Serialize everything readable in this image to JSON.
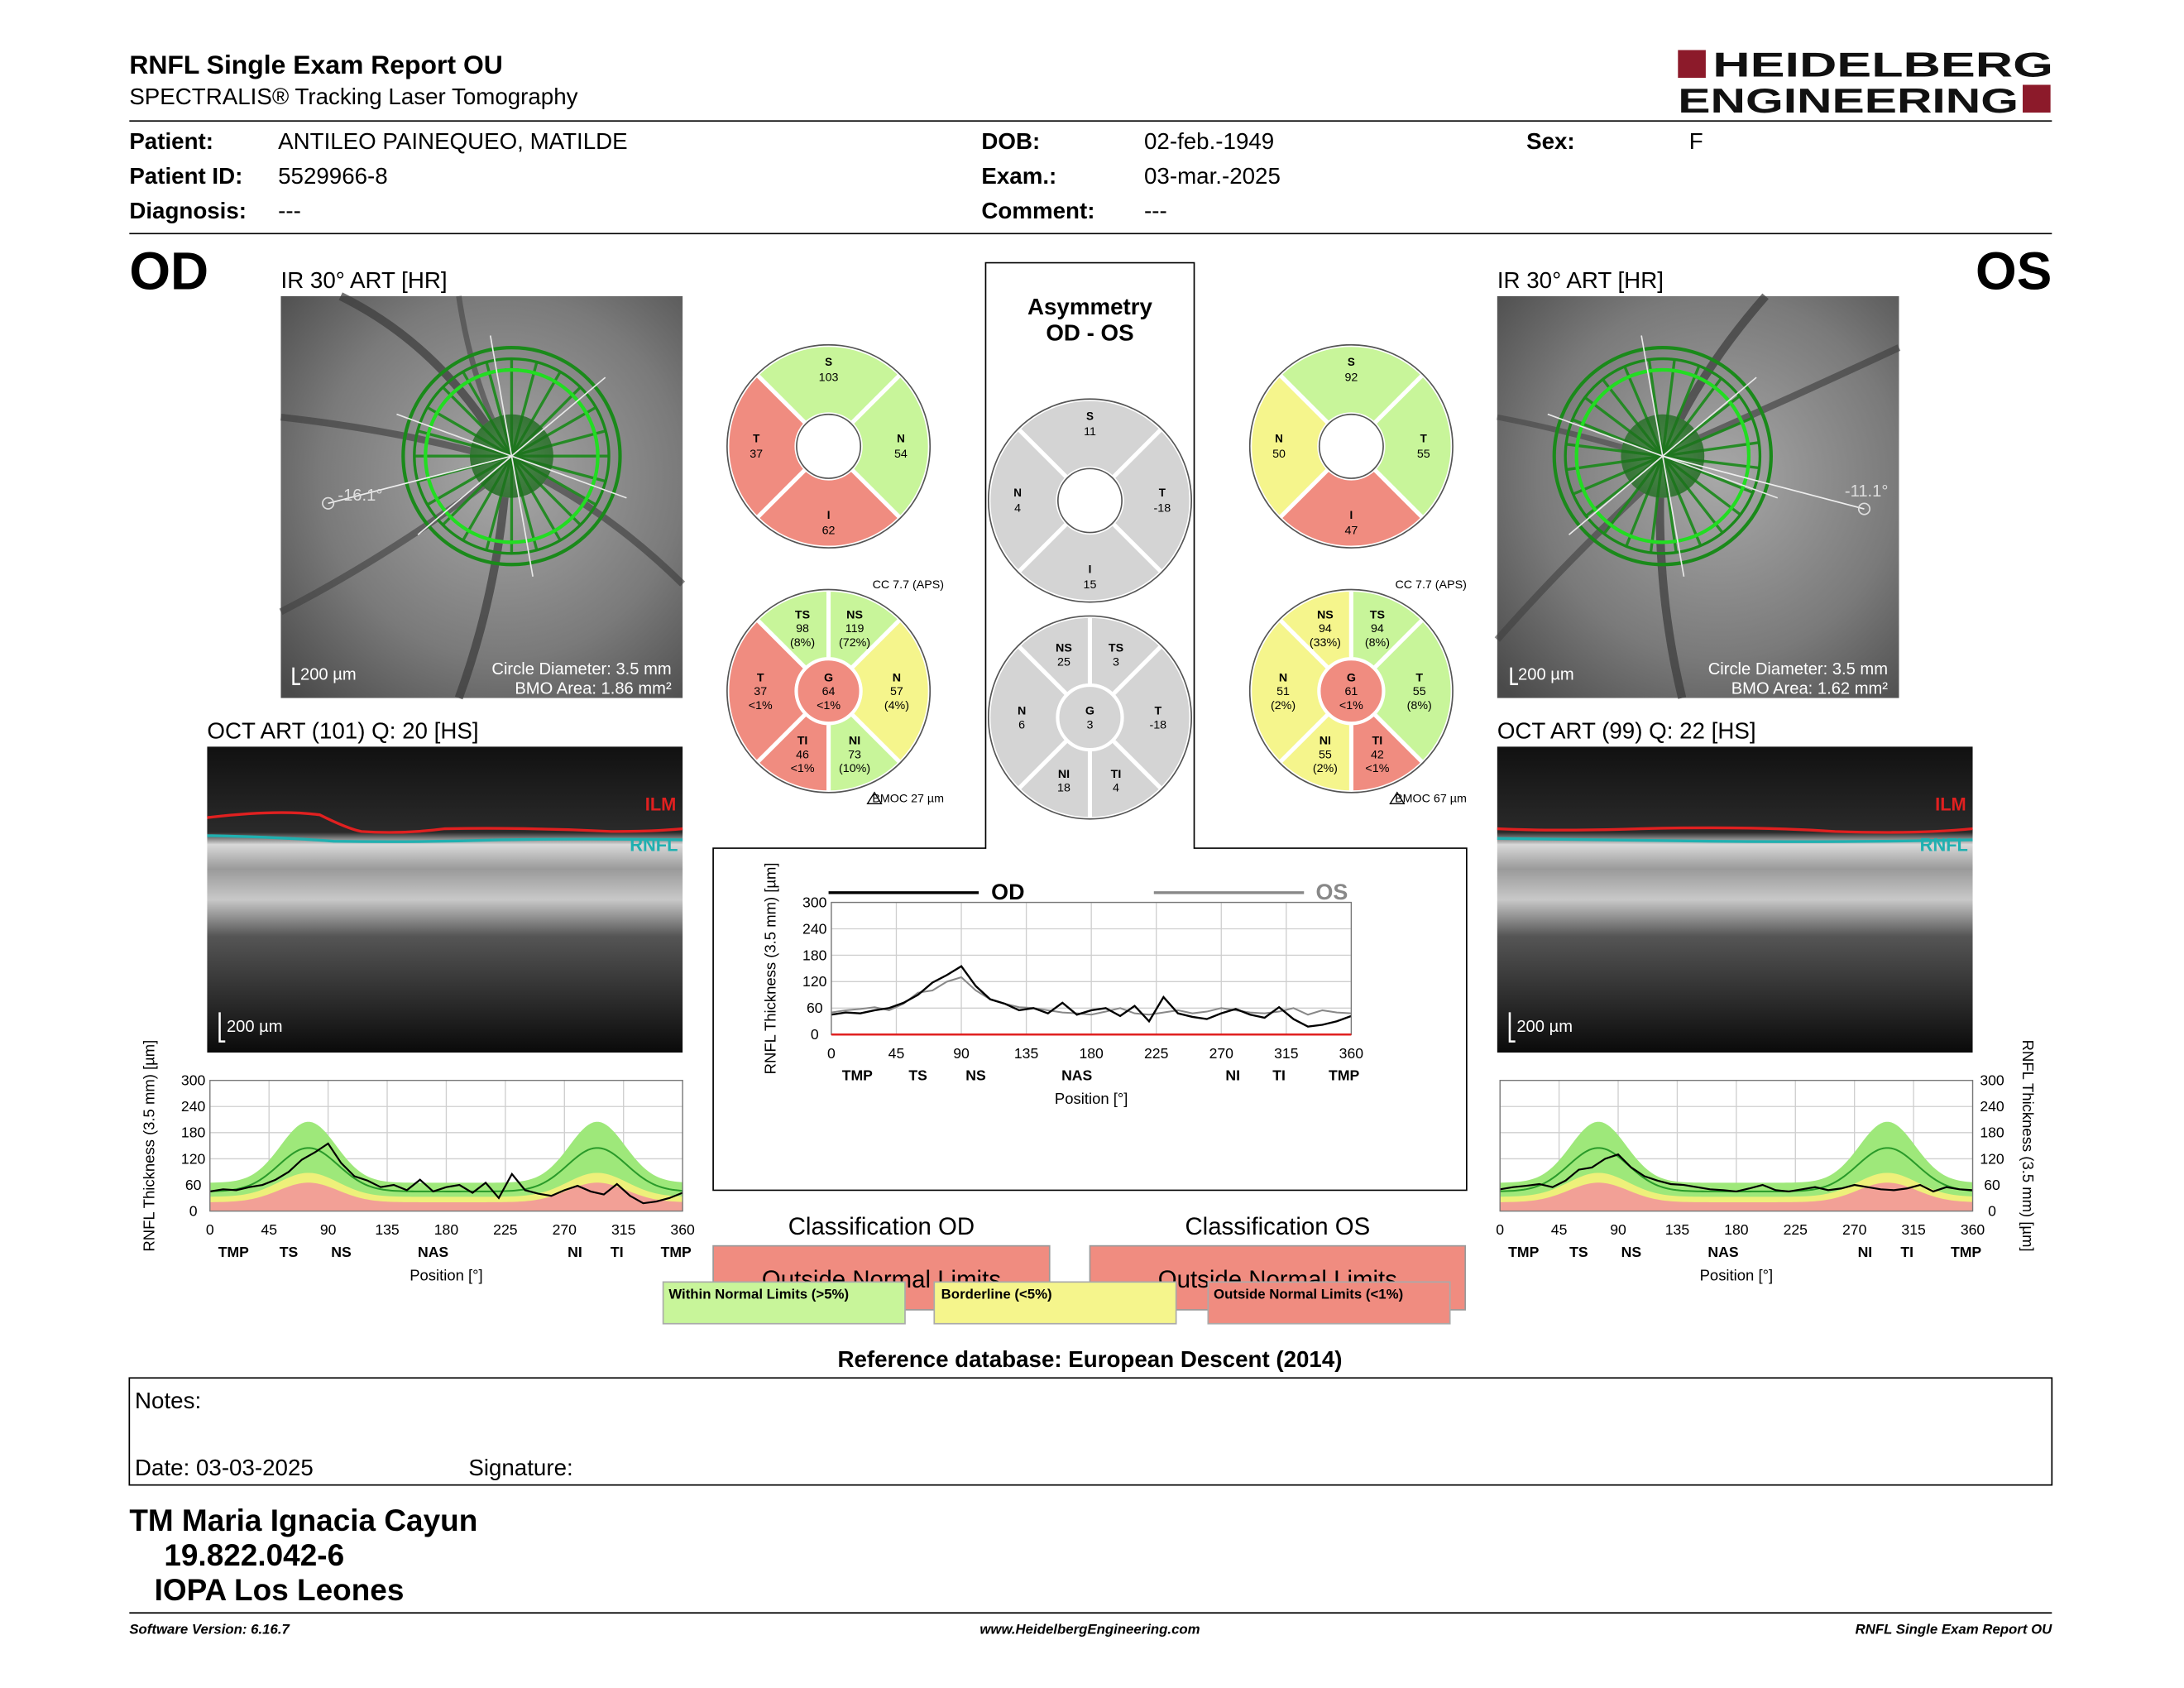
{
  "header": {
    "title": "RNFL Single Exam Report OU",
    "subtitle": "SPECTRALIS® Tracking Laser Tomography",
    "brand_line1": "HEIDELBERG",
    "brand_line2": "ENGINEERING",
    "brand_color": "#8c1a2a"
  },
  "patient": {
    "patient_label": "Patient:",
    "patient_value": "ANTILEO PAINEQUEO, MATILDE",
    "id_label": "Patient ID:",
    "id_value": "5529966-8",
    "diagnosis_label": "Diagnosis:",
    "diagnosis_value": "---",
    "dob_label": "DOB:",
    "dob_value": "02-feb.-1949",
    "exam_label": "Exam.:",
    "exam_value": "03-mar.-2025",
    "comment_label": "Comment:",
    "comment_value": "---",
    "sex_label": "Sex:",
    "sex_value": "F"
  },
  "od": {
    "eye": "OD",
    "ir_title": "IR 30° ART [HR]",
    "circle_diameter": "Circle Diameter: 3.5 mm",
    "bmo_area": "BMO Area: 1.86 mm²",
    "scale": "200 µm",
    "angle": "-16.1°",
    "oct_title": "OCT ART (101) Q: 20 [HS]",
    "oct_scale": "200 µm",
    "ilm": "ILM",
    "rnfl": "RNFL",
    "sectors4": {
      "S": "103",
      "T": "37",
      "N": "54",
      "I": "62"
    },
    "cc": "CC 7.7 (APS)",
    "bmoc": "BMOC 27 µm",
    "sectors6": {
      "TS": [
        "TS",
        "98",
        "(8%)"
      ],
      "NS": [
        "NS",
        "119",
        "(72%)"
      ],
      "T": [
        "T",
        "37",
        "<1%"
      ],
      "G": [
        "G",
        "64",
        "<1%"
      ],
      "N": [
        "N",
        "57",
        "(4%)"
      ],
      "TI": [
        "TI",
        "46",
        "<1%"
      ],
      "NI": [
        "NI",
        "73",
        "(10%)"
      ]
    }
  },
  "os": {
    "eye": "OS",
    "ir_title": "IR 30° ART [HR]",
    "circle_diameter": "Circle Diameter: 3.5 mm",
    "bmo_area": "BMO Area: 1.62 mm²",
    "scale": "200 µm",
    "angle": "-11.1°",
    "oct_title": "OCT ART (99) Q: 22 [HS]",
    "oct_scale": "200 µm",
    "ilm": "ILM",
    "rnfl": "RNFL",
    "sectors4": {
      "S": "92",
      "N": "50",
      "T": "55",
      "I": "47"
    },
    "cc": "CC 7.7 (APS)",
    "bmoc": "BMOC 67 µm",
    "sectors6": {
      "NS": [
        "NS",
        "94",
        "(33%)"
      ],
      "TS": [
        "TS",
        "94",
        "(8%)"
      ],
      "N": [
        "N",
        "51",
        "(2%)"
      ],
      "G": [
        "G",
        "61",
        "<1%"
      ],
      "T": [
        "T",
        "55",
        "(8%)"
      ],
      "NI": [
        "NI",
        "55",
        "(2%)"
      ],
      "TI": [
        "TI",
        "42",
        "<1%"
      ]
    }
  },
  "asym": {
    "title1": "Asymmetry",
    "title2": "OD - OS",
    "sectors4": {
      "S": "11",
      "N": "4",
      "T": "-18",
      "I": "15"
    },
    "sectors6": {
      "NS": [
        "NS",
        "25"
      ],
      "TS": [
        "TS",
        "3"
      ],
      "N": [
        "N",
        "6"
      ],
      "G": [
        "G",
        "3"
      ],
      "T": [
        "T",
        "-18"
      ],
      "NI": [
        "NI",
        "18"
      ],
      "TI": [
        "TI",
        "4"
      ]
    }
  },
  "profile": {
    "ylabel": "RNFL Thickness (3.5 mm) [µm]",
    "xlabel": "Position [°]",
    "yticks": [
      "0",
      "60",
      "120",
      "180",
      "240",
      "300"
    ],
    "xticks": [
      "0",
      "45",
      "90",
      "135",
      "180",
      "225",
      "270",
      "315",
      "360"
    ],
    "sector_labels": [
      "TMP",
      "TS",
      "NS",
      "NAS",
      "NI",
      "TI",
      "TMP"
    ]
  },
  "asym_chart": {
    "legend_od": "OD",
    "legend_os": "OS"
  },
  "classification": {
    "od_title": "Classification OD",
    "os_title": "Classification OS",
    "od_value": "Outside Normal Limits",
    "os_value": "Outside Normal Limits",
    "legend_within": "Within Normal Limits (>5%)",
    "legend_borderline": "Borderline (<5%)",
    "legend_outside": "Outside Normal Limits (<1%)",
    "reference": "Reference database: European Descent (2014)"
  },
  "colors": {
    "green": "#c8f59a",
    "yellow": "#f5f58c",
    "red": "#f08c80",
    "gray": "#d4d4d4",
    "band_green": "#9ee87a",
    "band_yellow": "#eef07a",
    "band_red": "#f2a096"
  },
  "notes": {
    "label": "Notes:",
    "date": "Date: 03-03-2025",
    "signature": "Signature:"
  },
  "operator": {
    "name": "TM Maria Ignacia Cayun",
    "rut": "19.822.042-6",
    "institution": "IOPA Los Leones"
  },
  "footer": {
    "software": "Software Version: 6.16.7",
    "website": "www.HeidelbergEngineering.com",
    "report": "RNFL Single Exam Report OU"
  },
  "chart_data": [
    {
      "type": "line",
      "title": "",
      "xlabel": "Position [°]",
      "ylabel": "RNFL Thickness (3.5 mm) [µm]",
      "xlim": [
        0,
        360
      ],
      "ylim": [
        0,
        300
      ],
      "x": [
        0,
        10,
        20,
        30,
        40,
        50,
        60,
        70,
        80,
        90,
        100,
        110,
        120,
        130,
        140,
        150,
        160,
        170,
        180,
        190,
        200,
        210,
        220,
        230,
        240,
        250,
        260,
        270,
        280,
        290,
        300,
        310,
        320,
        330,
        340,
        350,
        360
      ],
      "series": [
        {
          "name": "OD",
          "values": [
            45,
            50,
            48,
            55,
            60,
            72,
            90,
            118,
            135,
            155,
            110,
            80,
            70,
            55,
            60,
            48,
            72,
            45,
            55,
            60,
            42,
            65,
            30,
            85,
            48,
            40,
            35,
            48,
            58,
            45,
            38,
            62,
            35,
            18,
            22,
            30,
            42
          ]
        },
        {
          "name": "OS",
          "values": [
            50,
            55,
            58,
            62,
            55,
            70,
            95,
            100,
            120,
            130,
            100,
            80,
            70,
            62,
            60,
            55,
            50,
            48,
            45,
            52,
            60,
            48,
            45,
            50,
            55,
            48,
            52,
            60,
            55,
            50,
            48,
            52,
            60,
            45,
            55,
            50,
            48
          ]
        }
      ],
      "grid": true,
      "legend": "top"
    },
    {
      "type": "line",
      "title": "",
      "xlabel": "Position [°]",
      "ylabel": "RNFL Thickness (3.5 mm) [µm]",
      "xlim": [
        0,
        360
      ],
      "ylim": [
        0,
        300
      ],
      "x": [
        0,
        10,
        20,
        30,
        40,
        50,
        60,
        70,
        80,
        90,
        100,
        110,
        120,
        130,
        140,
        150,
        160,
        170,
        180,
        190,
        200,
        210,
        220,
        230,
        240,
        250,
        260,
        270,
        280,
        290,
        300,
        310,
        320,
        330,
        340,
        350,
        360
      ],
      "series": [
        {
          "name": "OD",
          "values": [
            45,
            50,
            48,
            55,
            60,
            72,
            90,
            118,
            135,
            155,
            110,
            80,
            70,
            55,
            60,
            48,
            72,
            45,
            55,
            60,
            42,
            65,
            30,
            85,
            48,
            40,
            35,
            48,
            58,
            45,
            38,
            62,
            35,
            18,
            22,
            30,
            42
          ]
        }
      ],
      "grid": true
    },
    {
      "type": "line",
      "title": "",
      "xlabel": "Position [°]",
      "ylabel": "RNFL Thickness (3.5 mm) [µm]",
      "xlim": [
        0,
        360
      ],
      "ylim": [
        0,
        300
      ],
      "x": [
        0,
        10,
        20,
        30,
        40,
        50,
        60,
        70,
        80,
        90,
        100,
        110,
        120,
        130,
        140,
        150,
        160,
        170,
        180,
        190,
        200,
        210,
        220,
        230,
        240,
        250,
        260,
        270,
        280,
        290,
        300,
        310,
        320,
        330,
        340,
        350,
        360
      ],
      "series": [
        {
          "name": "OS",
          "values": [
            50,
            55,
            58,
            62,
            55,
            70,
            95,
            100,
            120,
            130,
            100,
            80,
            70,
            62,
            60,
            55,
            50,
            48,
            45,
            52,
            60,
            48,
            45,
            50,
            55,
            48,
            52,
            60,
            55,
            50,
            48,
            52,
            60,
            45,
            55,
            50,
            48
          ]
        }
      ],
      "grid": true
    }
  ]
}
